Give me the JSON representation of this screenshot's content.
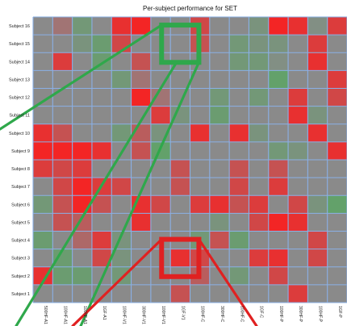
{
  "chart_data": {
    "type": "heatmap",
    "title": "Per-subject performance for SET",
    "rows": [
      "Subject 16",
      "Subject 15",
      "Subject 14",
      "Subject 13",
      "Subject 12",
      "Subject 11",
      "Subject 10",
      "Subject 9",
      "Subject 8",
      "Subject 7",
      "Subject 6",
      "Subject 5",
      "Subject 4",
      "Subject 3",
      "Subject 2",
      "Subject 1"
    ],
    "columns": [
      "500HF-A1",
      "100HF-A1",
      "100HF-A1",
      "1GF-A1",
      "100HF-V1",
      "300HF-V1",
      "100HF-V1",
      "1GF-V1",
      "100HF-C",
      "300HF-C",
      "100HF-C",
      "1GF-C",
      "100HF-P",
      "300HF-P",
      "100HF-P",
      "1GF-P"
    ],
    "scale": {
      "min": -1,
      "max": 1,
      "low_color": "#ff1a1a",
      "mid_color": "#8a8a8a",
      "high_color": "#3cb84a"
    },
    "values": [
      [
        0.0,
        -0.2,
        0.3,
        0.0,
        -0.8,
        -0.9,
        0.0,
        0.0,
        -0.6,
        0.0,
        0.0,
        0.2,
        -0.9,
        -0.8,
        0.1,
        -0.7
      ],
      [
        0.0,
        0.0,
        0.2,
        0.4,
        -0.6,
        0.0,
        0.0,
        0.0,
        -0.5,
        0.0,
        0.3,
        0.2,
        0.2,
        0.0,
        -0.7,
        0.0
      ],
      [
        0.0,
        -0.7,
        0.0,
        0.4,
        0.0,
        -0.5,
        0.0,
        0.0,
        0.0,
        0.0,
        0.3,
        0.3,
        0.1,
        0.0,
        -0.8,
        0.0
      ],
      [
        0.0,
        0.0,
        0.0,
        0.0,
        0.3,
        -0.2,
        0.0,
        0.0,
        0.0,
        0.0,
        0.0,
        0.0,
        0.5,
        0.0,
        0.0,
        -0.7
      ],
      [
        0.0,
        0.0,
        0.0,
        0.0,
        0.0,
        -0.9,
        -0.2,
        0.0,
        0.0,
        0.3,
        0.0,
        0.3,
        0.0,
        -0.7,
        0.0,
        -0.6
      ],
      [
        0.0,
        0.0,
        0.0,
        0.0,
        0.0,
        0.0,
        -0.7,
        0.2,
        0.0,
        0.4,
        0.0,
        0.0,
        0.0,
        -0.8,
        0.2,
        0.0
      ],
      [
        -0.8,
        -0.5,
        0.0,
        0.0,
        0.3,
        -0.4,
        0.2,
        0.0,
        -0.8,
        0.0,
        -0.8,
        0.2,
        0.0,
        0.0,
        -0.8,
        0.0
      ],
      [
        -0.9,
        -0.9,
        -0.9,
        -0.8,
        0.0,
        -0.5,
        0.5,
        0.0,
        0.0,
        0.0,
        0.0,
        0.0,
        0.3,
        0.2,
        0.0,
        -0.8
      ],
      [
        -0.7,
        -0.6,
        -0.7,
        0.0,
        0.0,
        0.0,
        0.0,
        -0.5,
        0.0,
        0.0,
        -0.5,
        0.0,
        -0.5,
        0.0,
        0.0,
        0.0
      ],
      [
        0.0,
        -0.6,
        -0.9,
        -0.7,
        -0.6,
        0.0,
        0.0,
        -0.5,
        0.0,
        0.0,
        -0.6,
        0.0,
        -0.7,
        0.0,
        0.0,
        0.0
      ],
      [
        0.3,
        -0.5,
        -0.9,
        -0.5,
        0.0,
        -0.8,
        -0.6,
        0.0,
        -0.7,
        -0.8,
        -0.5,
        -0.7,
        0.0,
        -0.6,
        0.2,
        0.5
      ],
      [
        0.0,
        -0.5,
        -0.4,
        0.0,
        0.0,
        -0.8,
        0.0,
        0.0,
        0.0,
        0.2,
        0.0,
        -0.6,
        -0.9,
        -0.8,
        0.0,
        0.0
      ],
      [
        0.4,
        0.0,
        -0.3,
        -0.7,
        0.2,
        0.0,
        0.0,
        0.0,
        0.3,
        -0.5,
        0.4,
        0.0,
        0.0,
        0.0,
        -0.6,
        0.0
      ],
      [
        0.0,
        0.4,
        0.0,
        -0.6,
        0.2,
        0.0,
        0.0,
        -0.8,
        -0.6,
        0.0,
        0.0,
        -0.7,
        -0.8,
        0.0,
        -0.6,
        0.0
      ],
      [
        -0.8,
        0.4,
        0.4,
        0.0,
        0.3,
        0.0,
        0.0,
        0.0,
        -0.4,
        0.0,
        0.3,
        0.0,
        -0.6,
        0.0,
        0.0,
        0.0
      ],
      [
        0.0,
        0.0,
        0.0,
        0.0,
        0.0,
        0.0,
        0.0,
        -0.5,
        0.0,
        0.0,
        0.0,
        0.0,
        0.0,
        -0.7,
        0.0,
        0.0
      ]
    ],
    "highlights": [
      {
        "row": "Subject 15",
        "column": "1GF-V1",
        "color": "#2fa84b"
      },
      {
        "row": "Subject 3",
        "column": "1GF-V1",
        "color": "#e02121"
      }
    ],
    "grid": true,
    "legend": "none"
  }
}
